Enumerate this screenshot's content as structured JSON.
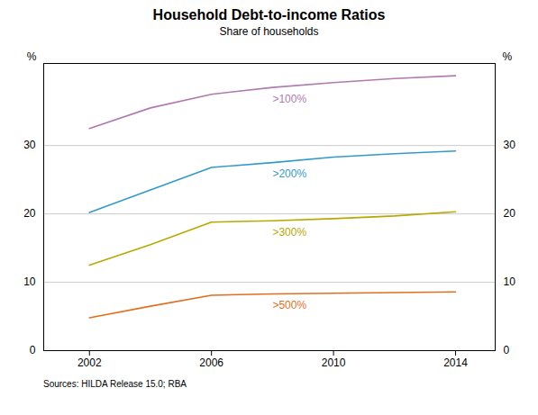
{
  "chart_data": {
    "type": "line",
    "title": "Household Debt-to-income Ratios",
    "subtitle": "Share of households",
    "source": "Sources:  HILDA Release 15.0; RBA",
    "x": [
      2002,
      2004,
      2006,
      2008,
      2010,
      2012,
      2014
    ],
    "series": [
      {
        "name": ">100%",
        "color": "#b07ab0",
        "values": [
          32.5,
          35.5,
          37.5,
          38.5,
          39.2,
          39.8,
          40.2
        ]
      },
      {
        "name": ">200%",
        "color": "#3399cc",
        "values": [
          20.2,
          23.5,
          26.8,
          27.5,
          28.3,
          28.8,
          29.2
        ]
      },
      {
        "name": ">300%",
        "color": "#b8a800",
        "values": [
          12.5,
          15.5,
          18.8,
          19.0,
          19.3,
          19.7,
          20.3
        ]
      },
      {
        "name": ">500%",
        "color": "#e07020",
        "values": [
          4.8,
          6.5,
          8.1,
          8.3,
          8.4,
          8.5,
          8.6
        ]
      }
    ],
    "xlim": [
      2000.5,
      2015.3
    ],
    "xticks": [
      2002,
      2006,
      2010,
      2014
    ],
    "ylim": [
      0,
      42
    ],
    "yticks": [
      0,
      10,
      20,
      30
    ],
    "y2lim": [
      0,
      42
    ],
    "y2ticks": [
      0,
      10,
      20,
      30
    ],
    "ylabel": "%",
    "y2label": "%",
    "grid": "y"
  }
}
